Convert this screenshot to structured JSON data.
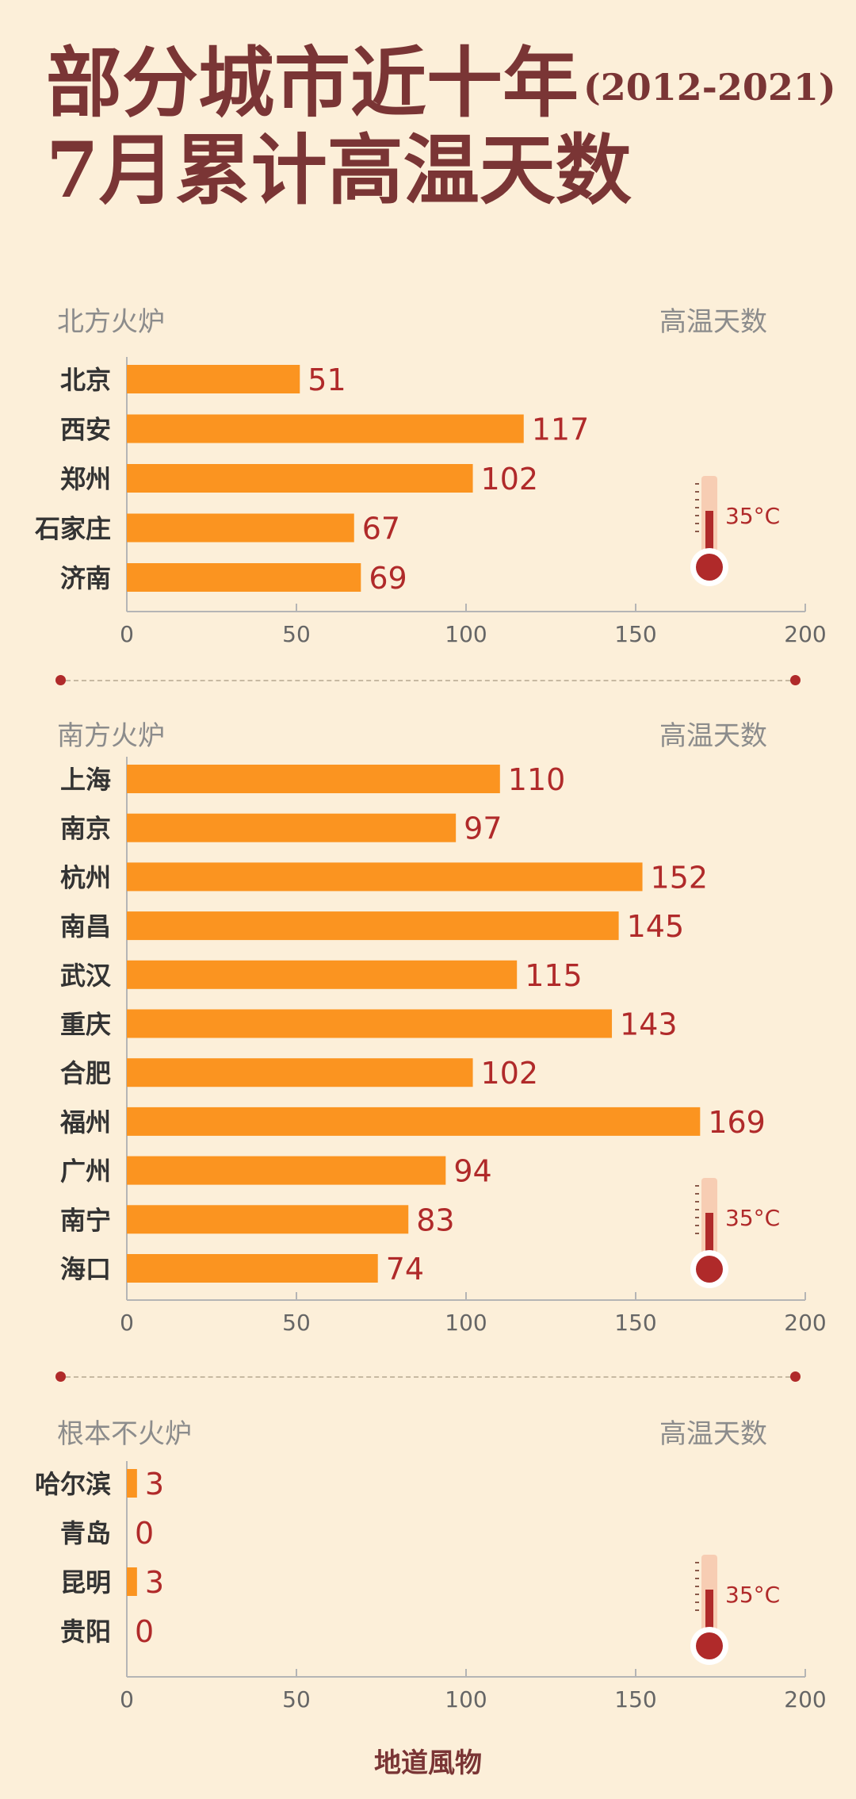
{
  "title": {
    "line1": "部分城市近十年",
    "years": "(2012-2021)",
    "line2": "7月累计高温天数"
  },
  "thermometer_label": "35°C",
  "footer": "地道風物",
  "colors": {
    "bar": "#fb9420",
    "value": "#b02a2a",
    "title": "#7a3535",
    "background": "#fcefd9",
    "axis": "#aaaaaa"
  },
  "chart_data": [
    {
      "type": "bar",
      "orientation": "horizontal",
      "title": "北方火炉",
      "metric_label": "高温天数",
      "categories": [
        "北京",
        "西安",
        "郑州",
        "石家庄",
        "济南"
      ],
      "values": [
        51,
        117,
        102,
        67,
        69
      ],
      "xlim": [
        0,
        200
      ],
      "xticks": [
        0,
        50,
        100,
        150,
        200
      ]
    },
    {
      "type": "bar",
      "orientation": "horizontal",
      "title": "南方火炉",
      "metric_label": "高温天数",
      "categories": [
        "上海",
        "南京",
        "杭州",
        "南昌",
        "武汉",
        "重庆",
        "合肥",
        "福州",
        "广州",
        "南宁",
        "海口"
      ],
      "values": [
        110,
        97,
        152,
        145,
        115,
        143,
        102,
        169,
        94,
        83,
        74
      ],
      "xlim": [
        0,
        200
      ],
      "xticks": [
        0,
        50,
        100,
        150,
        200
      ]
    },
    {
      "type": "bar",
      "orientation": "horizontal",
      "title": "根本不火炉",
      "metric_label": "高温天数",
      "categories": [
        "哈尔滨",
        "青岛",
        "昆明",
        "贵阳"
      ],
      "values": [
        3,
        0,
        3,
        0
      ],
      "xlim": [
        0,
        200
      ],
      "xticks": [
        0,
        50,
        100,
        150,
        200
      ]
    }
  ]
}
